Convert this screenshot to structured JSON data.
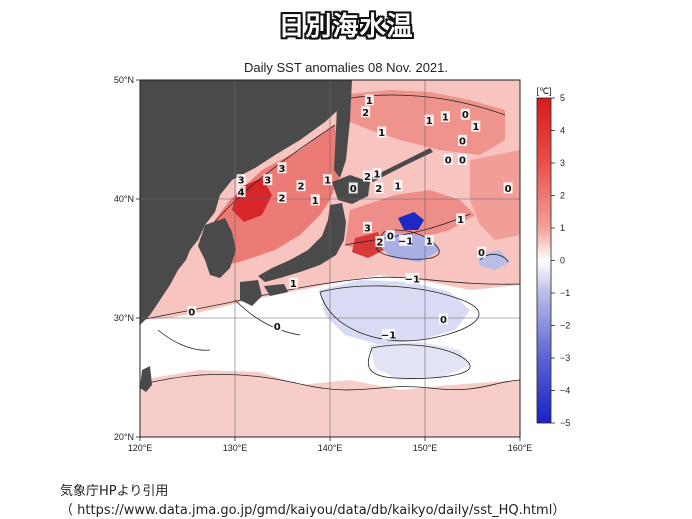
{
  "header": {
    "banner": "日別海水温",
    "map_title": "Daily SST anomalies 08 Nov. 2021."
  },
  "map": {
    "lon_range": [
      120,
      160
    ],
    "lat_range": [
      20,
      50
    ],
    "lon_ticks": [
      "120°E",
      "130°E",
      "140°E",
      "150°E",
      "160°E"
    ],
    "lat_ticks": [
      "50°N",
      "40°N",
      "30°N",
      "20°N"
    ],
    "land_color": "#4a4a4a",
    "contour_labels": [
      {
        "text": "1",
        "lon": 144.2,
        "lat": 48.2
      },
      {
        "text": "2",
        "lon": 143.8,
        "lat": 47.2
      },
      {
        "text": "1",
        "lon": 150.5,
        "lat": 46.5
      },
      {
        "text": "1",
        "lon": 152.2,
        "lat": 46.8
      },
      {
        "text": "0",
        "lon": 154.3,
        "lat": 47.0
      },
      {
        "text": "1",
        "lon": 155.4,
        "lat": 46.0
      },
      {
        "text": "1",
        "lon": 145.5,
        "lat": 45.5
      },
      {
        "text": "0",
        "lon": 154.0,
        "lat": 44.8
      },
      {
        "text": "0",
        "lon": 152.5,
        "lat": 43.2
      },
      {
        "text": "0",
        "lon": 154.0,
        "lat": 43.2
      },
      {
        "text": "3",
        "lon": 130.7,
        "lat": 41.5
      },
      {
        "text": "3",
        "lon": 133.5,
        "lat": 41.5
      },
      {
        "text": "3",
        "lon": 135.0,
        "lat": 42.5
      },
      {
        "text": "2",
        "lon": 135.0,
        "lat": 40.0
      },
      {
        "text": "2",
        "lon": 137.0,
        "lat": 41.0
      },
      {
        "text": "4",
        "lon": 130.7,
        "lat": 40.5
      },
      {
        "text": "1",
        "lon": 139.8,
        "lat": 41.5
      },
      {
        "text": "1",
        "lon": 138.5,
        "lat": 39.8
      },
      {
        "text": "2",
        "lon": 144.0,
        "lat": 41.8
      },
      {
        "text": "1",
        "lon": 145.0,
        "lat": 42.0
      },
      {
        "text": "0",
        "lon": 142.5,
        "lat": 40.8
      },
      {
        "text": "2",
        "lon": 145.2,
        "lat": 40.8
      },
      {
        "text": "1",
        "lon": 147.2,
        "lat": 41.0
      },
      {
        "text": "0",
        "lon": 158.8,
        "lat": 40.8
      },
      {
        "text": "1",
        "lon": 153.8,
        "lat": 38.2
      },
      {
        "text": "3",
        "lon": 144.0,
        "lat": 37.5
      },
      {
        "text": "2",
        "lon": 145.3,
        "lat": 36.3
      },
      {
        "text": "0",
        "lon": 146.4,
        "lat": 36.8
      },
      {
        "text": "−1",
        "lon": 147.8,
        "lat": 36.4
      },
      {
        "text": "1",
        "lon": 150.5,
        "lat": 36.4
      },
      {
        "text": "0",
        "lon": 156.0,
        "lat": 35.4
      },
      {
        "text": "1",
        "lon": 136.2,
        "lat": 32.8
      },
      {
        "text": "−1",
        "lon": 148.5,
        "lat": 33.2
      },
      {
        "text": "0",
        "lon": 125.5,
        "lat": 30.4
      },
      {
        "text": "0",
        "lon": 134.5,
        "lat": 29.2
      },
      {
        "text": "−1",
        "lon": 146.0,
        "lat": 28.5
      },
      {
        "text": "0",
        "lon": 152.0,
        "lat": 29.8
      }
    ]
  },
  "colorbar": {
    "unit": "[℃]",
    "ticks": [
      "5",
      "4",
      "3",
      "2",
      "1",
      "0",
      "−1",
      "−2",
      "−3",
      "−4",
      "−5"
    ]
  },
  "credit": {
    "line1": "気象庁HPより引用",
    "line2": "（ https://www.data.jma.go.jp/gmd/kaiyou/data/db/kaikyo/daily/sst_HQ.html）"
  }
}
